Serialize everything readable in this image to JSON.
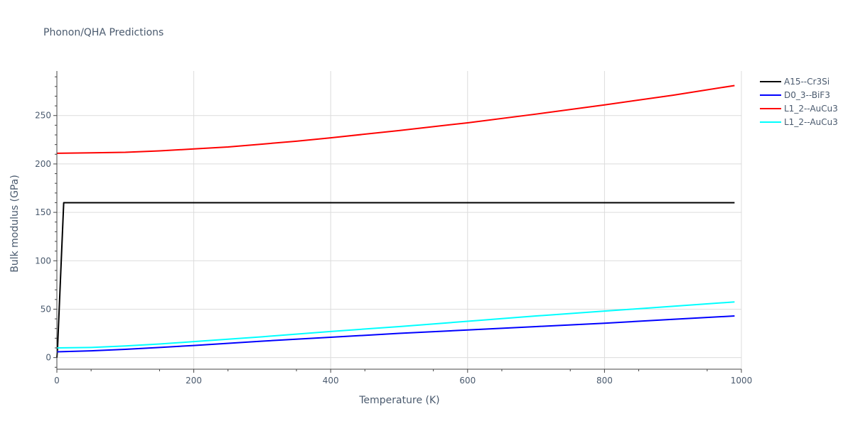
{
  "chart_data": {
    "type": "line",
    "title": "Phonon/QHA Predictions",
    "xlabel": "Temperature (K)",
    "ylabel": "Bulk modulus (GPa)",
    "xlim": [
      0,
      1000
    ],
    "ylim": [
      -12,
      296
    ],
    "x_ticks": [
      0,
      200,
      400,
      600,
      800,
      1000
    ],
    "y_ticks": [
      0,
      50,
      100,
      150,
      200,
      250
    ],
    "grid": true,
    "legend_position": "top-right",
    "series": [
      {
        "name": "A15--Cr3Si",
        "color": "#000000",
        "x": [
          0,
          1,
          10,
          100,
          200,
          300,
          400,
          500,
          600,
          700,
          800,
          900,
          990
        ],
        "y": [
          0,
          10,
          160,
          160,
          160,
          160,
          160,
          160,
          160,
          160,
          160,
          160,
          160
        ]
      },
      {
        "name": "D0_3--BiF3",
        "color": "#0000ff",
        "x": [
          0,
          50,
          100,
          150,
          200,
          300,
          400,
          500,
          600,
          700,
          800,
          900,
          990
        ],
        "y": [
          6,
          7,
          8.5,
          10.5,
          12.5,
          17,
          21,
          25,
          28.5,
          32,
          35.5,
          39.5,
          43
        ]
      },
      {
        "name": "L1_2--AuCu3",
        "color": "#ff0000",
        "x": [
          0,
          50,
          100,
          150,
          200,
          250,
          300,
          350,
          400,
          500,
          600,
          700,
          800,
          900,
          990
        ],
        "y": [
          211,
          211.5,
          212,
          213.5,
          215.5,
          217.5,
          220.5,
          223.5,
          227,
          234.5,
          242.5,
          251.5,
          261,
          271,
          281
        ]
      },
      {
        "name": "L1_2--AuCu3",
        "color": "#00ffff",
        "x": [
          0,
          50,
          100,
          150,
          200,
          300,
          400,
          500,
          600,
          700,
          800,
          900,
          990
        ],
        "y": [
          10,
          10.5,
          12,
          14,
          16.5,
          21.5,
          27,
          32,
          37.5,
          43,
          48,
          53,
          57.5
        ]
      }
    ]
  }
}
